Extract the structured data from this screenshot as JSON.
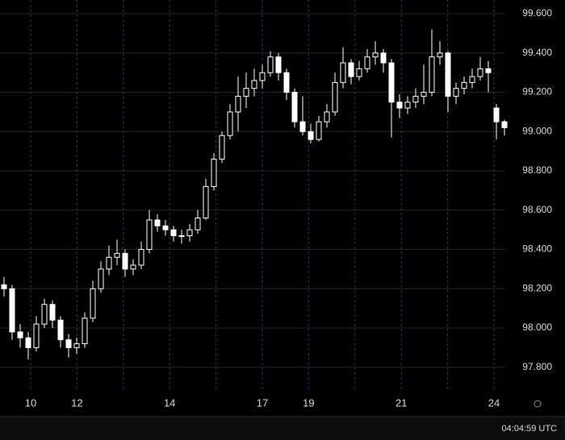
{
  "chart_data": {
    "type": "candlestick",
    "categories": [
      "10",
      "12",
      null,
      "14",
      null,
      "17",
      "19",
      null,
      "21",
      null,
      "24"
    ],
    "ylim": [
      97.68,
      99.67
    ],
    "yticks": [
      {
        "value": 97.8,
        "label": "97.800"
      },
      {
        "value": 98.0,
        "label": "98.000"
      },
      {
        "value": 98.2,
        "label": "98.200"
      },
      {
        "value": 98.4,
        "label": "98.400"
      },
      {
        "value": 98.6,
        "label": "98.600"
      },
      {
        "value": 98.8,
        "label": "98.800"
      },
      {
        "value": 99.0,
        "label": "99.000"
      },
      {
        "value": 99.2,
        "label": "99.200"
      },
      {
        "value": 99.4,
        "label": "99.400"
      },
      {
        "value": 99.6,
        "label": "99.600"
      }
    ],
    "grid": true,
    "color": "#ffffff",
    "ohlc": [
      [
        98.22,
        98.26,
        98.16,
        98.2
      ],
      [
        98.2,
        98.22,
        97.94,
        97.98
      ],
      [
        97.98,
        98.02,
        97.9,
        97.95
      ],
      [
        97.95,
        97.98,
        97.84,
        97.9
      ],
      [
        97.9,
        98.06,
        97.88,
        98.02
      ],
      [
        98.02,
        98.15,
        98.0,
        98.12
      ],
      [
        98.12,
        98.14,
        98.0,
        98.04
      ],
      [
        98.04,
        98.06,
        97.9,
        97.94
      ],
      [
        97.94,
        97.97,
        97.85,
        97.9
      ],
      [
        97.9,
        97.95,
        97.87,
        97.92
      ],
      [
        97.92,
        98.08,
        97.9,
        98.05
      ],
      [
        98.05,
        98.24,
        98.03,
        98.2
      ],
      [
        98.2,
        98.34,
        98.18,
        98.3
      ],
      [
        98.3,
        98.42,
        98.27,
        98.36
      ],
      [
        98.36,
        98.45,
        98.32,
        98.38
      ],
      [
        98.38,
        98.4,
        98.26,
        98.3
      ],
      [
        98.3,
        98.35,
        98.27,
        98.32
      ],
      [
        98.32,
        98.44,
        98.3,
        98.4
      ],
      [
        98.4,
        98.6,
        98.38,
        98.55
      ],
      [
        98.55,
        98.58,
        98.49,
        98.52
      ],
      [
        98.52,
        98.55,
        98.47,
        98.5
      ],
      [
        98.5,
        98.52,
        98.44,
        98.47
      ],
      [
        98.47,
        98.5,
        98.43,
        98.47
      ],
      [
        98.47,
        98.53,
        98.44,
        98.5
      ],
      [
        98.5,
        98.6,
        98.48,
        98.56
      ],
      [
        98.56,
        98.76,
        98.55,
        98.72
      ],
      [
        98.72,
        98.89,
        98.7,
        98.86
      ],
      [
        98.86,
        99.0,
        98.84,
        98.98
      ],
      [
        98.98,
        99.14,
        98.96,
        99.1
      ],
      [
        99.1,
        99.28,
        99.0,
        99.18
      ],
      [
        99.18,
        99.3,
        99.12,
        99.22
      ],
      [
        99.22,
        99.32,
        99.18,
        99.26
      ],
      [
        99.26,
        99.34,
        99.22,
        99.3
      ],
      [
        99.3,
        99.41,
        99.28,
        99.38
      ],
      [
        99.38,
        99.4,
        99.26,
        99.3
      ],
      [
        99.3,
        99.32,
        99.16,
        99.2
      ],
      [
        99.2,
        99.22,
        99.02,
        99.05
      ],
      [
        99.05,
        99.18,
        98.98,
        99.0
      ],
      [
        99.0,
        99.04,
        98.94,
        98.96
      ],
      [
        98.96,
        99.08,
        98.95,
        99.05
      ],
      [
        99.05,
        99.14,
        99.02,
        99.1
      ],
      [
        99.1,
        99.3,
        99.08,
        99.25
      ],
      [
        99.25,
        99.43,
        99.22,
        99.35
      ],
      [
        99.35,
        99.37,
        99.24,
        99.28
      ],
      [
        99.28,
        99.36,
        99.26,
        99.32
      ],
      [
        99.32,
        99.42,
        99.3,
        99.38
      ],
      [
        99.38,
        99.46,
        99.34,
        99.4
      ],
      [
        99.4,
        99.42,
        99.3,
        99.35
      ],
      [
        99.35,
        99.37,
        98.97,
        99.15
      ],
      [
        99.15,
        99.19,
        99.07,
        99.12
      ],
      [
        99.12,
        99.18,
        99.09,
        99.15
      ],
      [
        99.15,
        99.22,
        99.12,
        99.18
      ],
      [
        99.18,
        99.34,
        99.14,
        99.2
      ],
      [
        99.2,
        99.52,
        99.18,
        99.38
      ],
      [
        99.38,
        99.46,
        99.34,
        99.4
      ],
      [
        99.4,
        99.41,
        99.1,
        99.18
      ],
      [
        99.18,
        99.25,
        99.14,
        99.22
      ],
      [
        99.22,
        99.28,
        99.19,
        99.25
      ],
      [
        99.25,
        99.32,
        99.22,
        99.28
      ],
      [
        99.28,
        99.38,
        99.26,
        99.32
      ],
      [
        99.32,
        99.36,
        99.2,
        99.3
      ],
      [
        99.12,
        99.14,
        98.96,
        99.05
      ],
      [
        99.05,
        99.06,
        98.98,
        99.02
      ]
    ],
    "clock": "04:04:59 UTC"
  }
}
